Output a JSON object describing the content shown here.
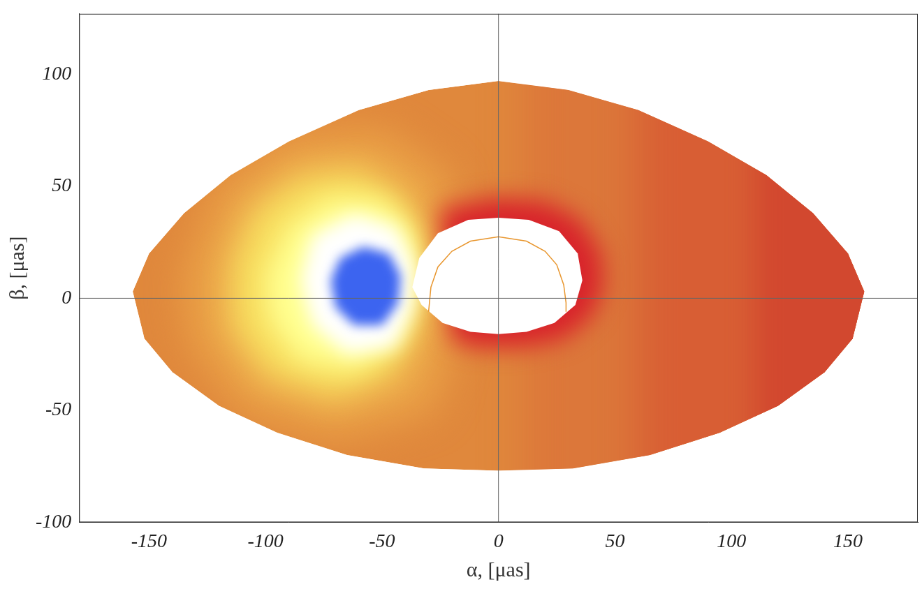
{
  "chart_data": {
    "type": "contour",
    "x_label": "α, [μas]",
    "y_label": "β, [μas]",
    "xlim": [
      -180,
      180
    ],
    "ylim": [
      -100,
      127
    ],
    "xticks": [
      -150,
      -100,
      -50,
      0,
      50,
      100,
      150
    ],
    "yticks": [
      -100,
      -50,
      0,
      50,
      100
    ],
    "grid": false,
    "color": "#e0883c",
    "outer_edge": {
      "x": [
        -157,
        -150,
        -135,
        -115,
        -90,
        -60,
        -30,
        0,
        30,
        60,
        90,
        115,
        135,
        150,
        157,
        152,
        140,
        120,
        95,
        65,
        32,
        0,
        -32,
        -65,
        -95,
        -120,
        -140,
        -152
      ],
      "y": [
        3,
        20,
        38,
        55,
        70,
        84,
        93,
        97,
        93,
        84,
        70,
        55,
        38,
        20,
        3,
        -18,
        -33,
        -48,
        -60,
        -70,
        -76,
        -77,
        -76,
        -70,
        -60,
        -48,
        -33,
        -18
      ]
    },
    "inner_edge": {
      "x": [
        -37,
        -34,
        -26,
        -13,
        0,
        13,
        26,
        34,
        36,
        33,
        24,
        12,
        0,
        -12,
        -24,
        -33
      ],
      "y": [
        5,
        18,
        29,
        35,
        36,
        35,
        30,
        20,
        8,
        -3,
        -11,
        -15,
        -16,
        -15,
        -11,
        -3
      ]
    },
    "regions": [
      {
        "color": "#eba448",
        "x": [
          -135,
          -120,
          -90,
          -50,
          -22,
          -15,
          -28,
          -70,
          -110,
          -132
        ],
        "y": [
          10,
          50,
          72,
          75,
          55,
          0,
          -50,
          -62,
          -50,
          -20
        ]
      },
      {
        "color": "#dc773a",
        "x": [
          10,
          180,
          180,
          10
        ],
        "y": [
          127,
          127,
          -100,
          -100
        ]
      },
      {
        "color": "#d85e34",
        "x": [
          60,
          180,
          180,
          60
        ],
        "y": [
          127,
          127,
          -100,
          -100
        ]
      },
      {
        "color": "#d2482f",
        "x": [
          110,
          180,
          180,
          110
        ],
        "y": [
          127,
          127,
          -100,
          -100
        ]
      },
      {
        "color": "#f8e060",
        "x": [
          -115,
          -105,
          -85,
          -60,
          -40,
          -32,
          -34,
          -45,
          -70,
          -100,
          -115
        ],
        "y": [
          15,
          40,
          55,
          58,
          45,
          20,
          -10,
          -35,
          -45,
          -35,
          -12
        ]
      },
      {
        "color": "#ffff90",
        "x": [
          -100,
          -90,
          -72,
          -50,
          -36,
          -34,
          -42,
          -62,
          -85,
          -98
        ],
        "y": [
          10,
          32,
          45,
          44,
          30,
          5,
          -20,
          -32,
          -28,
          -10
        ]
      },
      {
        "color": "#ffffff",
        "x": [
          -85,
          -80,
          -62,
          -44,
          -36,
          -37,
          -45,
          -65,
          -80
        ],
        "y": [
          8,
          28,
          38,
          32,
          15,
          -5,
          -22,
          -25,
          -12
        ]
      },
      {
        "color": "#3c64f0",
        "x": [
          -72,
          -68,
          -58,
          -47,
          -42,
          -43,
          -50,
          -62,
          -70
        ],
        "y": [
          8,
          18,
          23,
          20,
          10,
          -2,
          -12,
          -12,
          -4
        ]
      },
      {
        "color": "#d8232b",
        "x": [
          -25,
          0,
          20,
          35,
          44,
          45,
          40,
          28,
          10,
          -10,
          -20
        ],
        "y": [
          40,
          45,
          43,
          35,
          20,
          5,
          -8,
          -18,
          -22,
          -22,
          -19
        ]
      }
    ],
    "series": [
      {
        "color": "#e8962e",
        "x": [
          -30,
          -29,
          -26,
          -20,
          -12,
          0,
          12,
          20,
          25,
          28,
          29,
          29
        ],
        "y": [
          -6,
          5,
          14,
          21,
          25.5,
          27.5,
          25.5,
          21,
          15,
          6,
          -2,
          -6
        ]
      }
    ]
  }
}
